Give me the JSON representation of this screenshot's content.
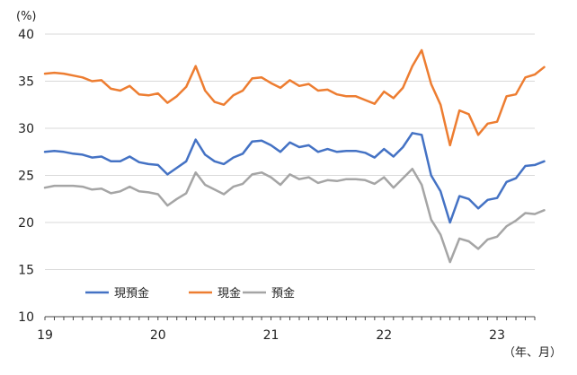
{
  "chart_data": {
    "type": "line",
    "y_unit_label": "(%)",
    "x_unit_label": "（年、月）",
    "ylim": [
      10,
      40
    ],
    "y_ticks": [
      10,
      15,
      20,
      25,
      30,
      35,
      40
    ],
    "grid": "horizontal",
    "legend_position": "bottom-left",
    "x_start": "2019-01",
    "x_end": "2023-05",
    "x_tick_labels": [
      {
        "label": "19",
        "x": "2019-01"
      },
      {
        "label": "20",
        "x": "2020-01"
      },
      {
        "label": "21",
        "x": "2021-01"
      },
      {
        "label": "22",
        "x": "2022-01"
      },
      {
        "label": "23",
        "x": "2023-01"
      }
    ],
    "series": [
      {
        "name": "現預金",
        "color": "#4472C4",
        "values": [
          27.5,
          27.6,
          27.5,
          27.3,
          27.2,
          26.9,
          27.0,
          26.5,
          26.5,
          27.0,
          26.4,
          26.2,
          26.1,
          25.1,
          25.8,
          26.5,
          28.8,
          27.2,
          26.5,
          26.2,
          26.9,
          27.3,
          28.6,
          28.7,
          28.2,
          27.5,
          28.5,
          28.0,
          28.2,
          27.5,
          27.8,
          27.5,
          27.6,
          27.6,
          27.4,
          26.9,
          27.8,
          27.0,
          28.0,
          29.5,
          29.3,
          25.0,
          23.3,
          20.0,
          22.8,
          22.5,
          21.5,
          22.4,
          22.6,
          24.3,
          24.7,
          26.0,
          26.1,
          26.5
        ]
      },
      {
        "name": "現金",
        "color": "#ED7D31",
        "values": [
          35.8,
          35.9,
          35.8,
          35.6,
          35.4,
          35.0,
          35.1,
          34.2,
          34.0,
          34.5,
          33.6,
          33.5,
          33.7,
          32.7,
          33.4,
          34.4,
          36.6,
          34.0,
          32.8,
          32.5,
          33.5,
          34.0,
          35.3,
          35.4,
          34.8,
          34.3,
          35.1,
          34.5,
          34.7,
          34.0,
          34.1,
          33.6,
          33.4,
          33.4,
          33.0,
          32.6,
          33.9,
          33.2,
          34.3,
          36.6,
          38.3,
          34.7,
          32.5,
          28.2,
          31.9,
          31.5,
          29.3,
          30.5,
          30.7,
          33.4,
          33.6,
          35.4,
          35.7,
          36.5
        ]
      },
      {
        "name": "預金",
        "color": "#A5A5A5",
        "values": [
          23.7,
          23.9,
          23.9,
          23.9,
          23.8,
          23.5,
          23.6,
          23.1,
          23.3,
          23.8,
          23.3,
          23.2,
          23.0,
          21.8,
          22.5,
          23.1,
          25.3,
          24.0,
          23.5,
          23.0,
          23.8,
          24.1,
          25.1,
          25.3,
          24.8,
          24.0,
          25.1,
          24.6,
          24.8,
          24.2,
          24.5,
          24.4,
          24.6,
          24.6,
          24.5,
          24.1,
          24.8,
          23.7,
          24.7,
          25.7,
          24.0,
          20.3,
          18.7,
          15.8,
          18.3,
          18.0,
          17.2,
          18.2,
          18.5,
          19.6,
          20.2,
          21.0,
          20.9,
          21.3
        ]
      }
    ]
  }
}
